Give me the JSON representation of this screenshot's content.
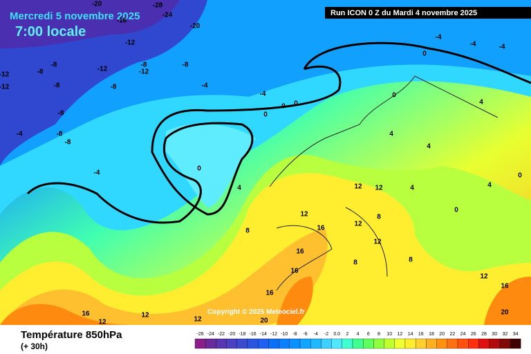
{
  "header": {
    "date": "Mercredi 5 novembre 2025",
    "time": "7:00 locale",
    "run": "Run ICON 0 Z du Mardi 4 novembre 2025"
  },
  "copyright": "Copyright © 2025 Meteociel.fr",
  "footer": {
    "parameter": "Température 850hPa",
    "lead": "(+ 30h)"
  },
  "contour_labels": [
    "-28",
    "-24",
    "-20",
    "-16",
    "-20",
    "-12",
    "-8",
    "-12",
    "-8",
    "-12",
    "-8",
    "-8",
    "-8",
    "-12",
    "-12",
    "-8",
    "-4",
    "-4",
    "0",
    "0",
    "0",
    "-8",
    "-4",
    "-8",
    "-8",
    "-4",
    "0",
    "4",
    "8",
    "-4",
    "-4",
    "-4",
    "0",
    "0",
    "4",
    "4",
    "4",
    "12",
    "12",
    "12",
    "16",
    "12",
    "8",
    "12",
    "16",
    "8",
    "16",
    "16",
    "20",
    "12",
    "12",
    "16",
    "12",
    "16",
    "20",
    "12",
    "0",
    "4",
    "0",
    "4",
    "8"
  ],
  "legend": [
    {
      "label": "-26",
      "color": "#8a1f8a"
    },
    {
      "label": "-24",
      "color": "#6a2a9a"
    },
    {
      "label": "-22",
      "color": "#5a35b0"
    },
    {
      "label": "-20",
      "color": "#4a40c0"
    },
    {
      "label": "-18",
      "color": "#3a4bd0"
    },
    {
      "label": "-16",
      "color": "#2a55e0"
    },
    {
      "label": "-14",
      "color": "#1f60f0"
    },
    {
      "label": "-12",
      "color": "#0a70f5"
    },
    {
      "label": "-10",
      "color": "#0a80ff"
    },
    {
      "label": "-8",
      "color": "#0b90ff"
    },
    {
      "label": "-6",
      "color": "#10a5ff"
    },
    {
      "label": "-4",
      "color": "#20b8ff"
    },
    {
      "label": "-2",
      "color": "#40d0ff"
    },
    {
      "label": "0.0",
      "color": "#50e8ff"
    },
    {
      "label": "2",
      "color": "#40ffd0"
    },
    {
      "label": "4",
      "color": "#40ff90"
    },
    {
      "label": "6",
      "color": "#60ff60"
    },
    {
      "label": "8",
      "color": "#90ff40"
    },
    {
      "label": "10",
      "color": "#c0ff30"
    },
    {
      "label": "12",
      "color": "#f0ff30"
    },
    {
      "label": "14",
      "color": "#ffee30"
    },
    {
      "label": "16",
      "color": "#ffd030"
    },
    {
      "label": "18",
      "color": "#ffb020"
    },
    {
      "label": "20",
      "color": "#ff9010"
    },
    {
      "label": "22",
      "color": "#ff7010"
    },
    {
      "label": "24",
      "color": "#ff5010"
    },
    {
      "label": "26",
      "color": "#ff3010"
    },
    {
      "label": "28",
      "color": "#e01010"
    },
    {
      "label": "30",
      "color": "#b00a0a"
    },
    {
      "label": "32",
      "color": "#800808"
    },
    {
      "label": "34",
      "color": "#400000"
    }
  ]
}
